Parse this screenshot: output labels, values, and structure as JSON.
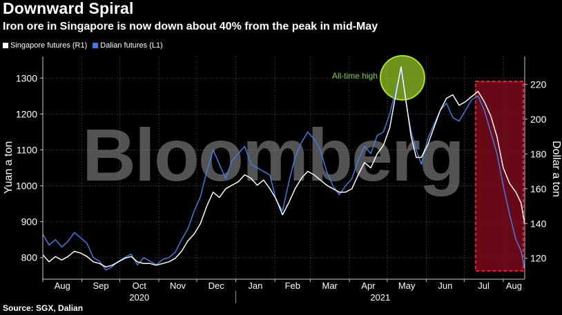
{
  "title": "Downward Spiral",
  "subtitle": "Iron ore in Singapore is now down about 40% from the peak in mid-May",
  "source": "Source: SGX, Dalian",
  "watermark": "Bloomberg",
  "legend": [
    {
      "label": "Singapore futures (R1)",
      "color": "#ffffff"
    },
    {
      "label": "Dalian futures (L1)",
      "color": "#3d7fe0"
    }
  ],
  "annotation": {
    "label": "All-time high",
    "color": "#7fd23a"
  },
  "colors": {
    "highlight_fill": "#7a0a1c",
    "highlight_border": "#e8213f",
    "circle": "#a8e22a",
    "dalian": "#3d7fe0",
    "singapore": "#ffffff"
  },
  "chart_data": {
    "type": "line",
    "x_months": [
      "Aug",
      "Sep",
      "Oct",
      "Nov",
      "Dec",
      "Jan",
      "Feb",
      "Mar",
      "Apr",
      "May",
      "Jun",
      "Jul",
      "Aug"
    ],
    "x_years": [
      "2020",
      "2021"
    ],
    "x_range": [
      "2020-08-01",
      "2021-08-18"
    ],
    "ylabel_left": "Yuan a ton",
    "ylabel_right": "Dollar a ton",
    "ylim_left": [
      740,
      1360
    ],
    "yticks_left": [
      800,
      900,
      1000,
      1100,
      1200,
      1300
    ],
    "ylim_right": [
      108,
      236
    ],
    "yticks_right": [
      120,
      140,
      160,
      180,
      200,
      220
    ],
    "grid": true,
    "legend_position": "top-left",
    "series": [
      {
        "name": "Dalian futures (L1)",
        "axis": "left",
        "points": [
          [
            "2020-08-01",
            865
          ],
          [
            "2020-08-06",
            835
          ],
          [
            "2020-08-11",
            850
          ],
          [
            "2020-08-16",
            830
          ],
          [
            "2020-08-21",
            845
          ],
          [
            "2020-08-26",
            870
          ],
          [
            "2020-08-31",
            855
          ],
          [
            "2020-09-05",
            840
          ],
          [
            "2020-09-10",
            800
          ],
          [
            "2020-09-15",
            790
          ],
          [
            "2020-09-20",
            765
          ],
          [
            "2020-09-25",
            775
          ],
          [
            "2020-09-30",
            790
          ],
          [
            "2020-10-05",
            800
          ],
          [
            "2020-10-10",
            810
          ],
          [
            "2020-10-15",
            780
          ],
          [
            "2020-10-20",
            800
          ],
          [
            "2020-10-25",
            790
          ],
          [
            "2020-10-30",
            780
          ],
          [
            "2020-11-04",
            795
          ],
          [
            "2020-11-09",
            800
          ],
          [
            "2020-11-14",
            815
          ],
          [
            "2020-11-19",
            850
          ],
          [
            "2020-11-24",
            880
          ],
          [
            "2020-11-29",
            930
          ],
          [
            "2020-12-04",
            970
          ],
          [
            "2020-12-09",
            1040
          ],
          [
            "2020-12-14",
            1100
          ],
          [
            "2020-12-19",
            1060
          ],
          [
            "2020-12-24",
            1020
          ],
          [
            "2020-12-29",
            1070
          ],
          [
            "2021-01-03",
            1090
          ],
          [
            "2021-01-08",
            1110
          ],
          [
            "2021-01-13",
            1060
          ],
          [
            "2021-01-18",
            1050
          ],
          [
            "2021-01-23",
            1040
          ],
          [
            "2021-01-28",
            1030
          ],
          [
            "2021-02-02",
            960
          ],
          [
            "2021-02-07",
            930
          ],
          [
            "2021-02-12",
            1010
          ],
          [
            "2021-02-17",
            1080
          ],
          [
            "2021-02-22",
            1120
          ],
          [
            "2021-02-27",
            1150
          ],
          [
            "2021-03-04",
            1130
          ],
          [
            "2021-03-09",
            1100
          ],
          [
            "2021-03-14",
            1040
          ],
          [
            "2021-03-19",
            1000
          ],
          [
            "2021-03-24",
            975
          ],
          [
            "2021-03-29",
            1000
          ],
          [
            "2021-04-03",
            1020
          ],
          [
            "2021-04-08",
            1070
          ],
          [
            "2021-04-13",
            1110
          ],
          [
            "2021-04-18",
            1090
          ],
          [
            "2021-04-23",
            1140
          ],
          [
            "2021-04-28",
            1150
          ],
          [
            "2021-05-03",
            1200
          ],
          [
            "2021-05-08",
            1270
          ],
          [
            "2021-05-12",
            1320
          ],
          [
            "2021-05-16",
            1230
          ],
          [
            "2021-05-20",
            1150
          ],
          [
            "2021-05-24",
            1100
          ],
          [
            "2021-05-28",
            1060
          ],
          [
            "2021-06-02",
            1130
          ],
          [
            "2021-06-07",
            1170
          ],
          [
            "2021-06-12",
            1210
          ],
          [
            "2021-06-17",
            1230
          ],
          [
            "2021-06-22",
            1190
          ],
          [
            "2021-06-27",
            1180
          ],
          [
            "2021-07-02",
            1210
          ],
          [
            "2021-07-07",
            1240
          ],
          [
            "2021-07-12",
            1250
          ],
          [
            "2021-07-17",
            1210
          ],
          [
            "2021-07-22",
            1150
          ],
          [
            "2021-07-27",
            1090
          ],
          [
            "2021-08-01",
            1000
          ],
          [
            "2021-08-06",
            920
          ],
          [
            "2021-08-11",
            850
          ],
          [
            "2021-08-15",
            820
          ],
          [
            "2021-08-18",
            770
          ]
        ]
      },
      {
        "name": "Singapore futures (R1)",
        "axis": "right",
        "points": [
          [
            "2020-08-01",
            122
          ],
          [
            "2020-08-06",
            118
          ],
          [
            "2020-08-11",
            121
          ],
          [
            "2020-08-16",
            119
          ],
          [
            "2020-08-21",
            121
          ],
          [
            "2020-08-26",
            124
          ],
          [
            "2020-08-31",
            123
          ],
          [
            "2020-09-05",
            121
          ],
          [
            "2020-09-10",
            118
          ],
          [
            "2020-09-15",
            117
          ],
          [
            "2020-09-20",
            115
          ],
          [
            "2020-09-25",
            116
          ],
          [
            "2020-09-30",
            118
          ],
          [
            "2020-10-05",
            120
          ],
          [
            "2020-10-10",
            121
          ],
          [
            "2020-10-15",
            118
          ],
          [
            "2020-10-20",
            117
          ],
          [
            "2020-10-25",
            117
          ],
          [
            "2020-10-30",
            116
          ],
          [
            "2020-11-04",
            117
          ],
          [
            "2020-11-09",
            118
          ],
          [
            "2020-11-14",
            120
          ],
          [
            "2020-11-19",
            124
          ],
          [
            "2020-11-24",
            130
          ],
          [
            "2020-11-29",
            134
          ],
          [
            "2020-12-04",
            140
          ],
          [
            "2020-12-09",
            150
          ],
          [
            "2020-12-14",
            158
          ],
          [
            "2020-12-19",
            155
          ],
          [
            "2020-12-24",
            160
          ],
          [
            "2020-12-29",
            162
          ],
          [
            "2021-01-03",
            164
          ],
          [
            "2021-01-08",
            168
          ],
          [
            "2021-01-13",
            166
          ],
          [
            "2021-01-18",
            162
          ],
          [
            "2021-01-23",
            165
          ],
          [
            "2021-01-28",
            160
          ],
          [
            "2021-02-02",
            154
          ],
          [
            "2021-02-07",
            145
          ],
          [
            "2021-02-12",
            152
          ],
          [
            "2021-02-17",
            160
          ],
          [
            "2021-02-22",
            166
          ],
          [
            "2021-02-27",
            170
          ],
          [
            "2021-03-04",
            168
          ],
          [
            "2021-03-09",
            165
          ],
          [
            "2021-03-14",
            162
          ],
          [
            "2021-03-19",
            160
          ],
          [
            "2021-03-24",
            158
          ],
          [
            "2021-03-29",
            158
          ],
          [
            "2021-04-03",
            160
          ],
          [
            "2021-04-08",
            168
          ],
          [
            "2021-04-13",
            175
          ],
          [
            "2021-04-18",
            172
          ],
          [
            "2021-04-23",
            180
          ],
          [
            "2021-04-28",
            185
          ],
          [
            "2021-05-03",
            195
          ],
          [
            "2021-05-08",
            215
          ],
          [
            "2021-05-12",
            230
          ],
          [
            "2021-05-16",
            210
          ],
          [
            "2021-05-20",
            190
          ],
          [
            "2021-05-24",
            178
          ],
          [
            "2021-05-28",
            178
          ],
          [
            "2021-06-02",
            185
          ],
          [
            "2021-06-07",
            195
          ],
          [
            "2021-06-12",
            205
          ],
          [
            "2021-06-17",
            212
          ],
          [
            "2021-06-22",
            214
          ],
          [
            "2021-06-27",
            208
          ],
          [
            "2021-07-02",
            210
          ],
          [
            "2021-07-07",
            213
          ],
          [
            "2021-07-12",
            216
          ],
          [
            "2021-07-17",
            210
          ],
          [
            "2021-07-22",
            202
          ],
          [
            "2021-07-27",
            190
          ],
          [
            "2021-08-01",
            172
          ],
          [
            "2021-08-06",
            163
          ],
          [
            "2021-08-11",
            158
          ],
          [
            "2021-08-15",
            152
          ],
          [
            "2021-08-18",
            140
          ]
        ]
      }
    ],
    "highlight_range": [
      "2021-07-10",
      "2021-08-18"
    ],
    "annotation_point": {
      "date": "2021-05-12",
      "value": 1320,
      "axis": "left"
    }
  }
}
